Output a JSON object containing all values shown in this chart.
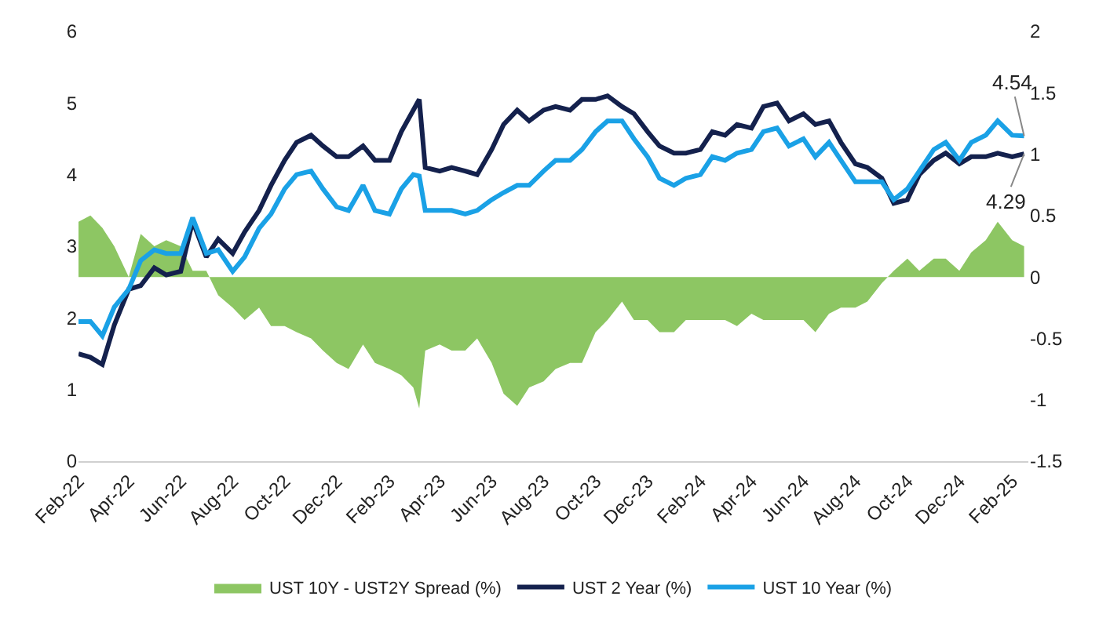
{
  "chart_data": {
    "type": "line",
    "x": [
      "2022-02-01",
      "2022-02-15",
      "2022-03-01",
      "2022-03-15",
      "2022-04-01",
      "2022-04-15",
      "2022-05-01",
      "2022-05-15",
      "2022-06-01",
      "2022-06-15",
      "2022-07-01",
      "2022-07-15",
      "2022-08-01",
      "2022-08-15",
      "2022-09-01",
      "2022-09-15",
      "2022-10-01",
      "2022-10-15",
      "2022-11-01",
      "2022-11-15",
      "2022-12-01",
      "2022-12-15",
      "2023-01-01",
      "2023-01-15",
      "2023-02-01",
      "2023-02-15",
      "2023-03-01",
      "2023-03-08",
      "2023-03-15",
      "2023-04-01",
      "2023-04-15",
      "2023-05-01",
      "2023-05-15",
      "2023-06-01",
      "2023-06-15",
      "2023-07-01",
      "2023-07-15",
      "2023-08-01",
      "2023-08-15",
      "2023-09-01",
      "2023-09-15",
      "2023-10-01",
      "2023-10-15",
      "2023-11-01",
      "2023-11-15",
      "2023-12-01",
      "2023-12-15",
      "2024-01-01",
      "2024-01-15",
      "2024-02-01",
      "2024-02-15",
      "2024-03-01",
      "2024-03-15",
      "2024-04-01",
      "2024-04-15",
      "2024-05-01",
      "2024-05-15",
      "2024-06-01",
      "2024-06-15",
      "2024-07-01",
      "2024-07-15",
      "2024-08-01",
      "2024-08-15",
      "2024-09-01",
      "2024-09-15",
      "2024-10-01",
      "2024-10-15",
      "2024-11-01",
      "2024-11-15",
      "2024-12-01",
      "2024-12-15",
      "2025-01-01",
      "2025-01-15",
      "2025-02-01",
      "2025-02-15"
    ],
    "series": [
      {
        "name": "UST 10Y - UST2Y Spread (%)",
        "type": "area",
        "axis": "y2",
        "color": "#8dc663",
        "values": [
          0.45,
          0.5,
          0.4,
          0.25,
          0.0,
          0.35,
          0.25,
          0.3,
          0.25,
          0.05,
          0.05,
          -0.15,
          -0.25,
          -0.35,
          -0.25,
          -0.4,
          -0.4,
          -0.45,
          -0.5,
          -0.6,
          -0.7,
          -0.75,
          -0.55,
          -0.7,
          -0.75,
          -0.8,
          -0.9,
          -1.07,
          -0.6,
          -0.55,
          -0.6,
          -0.6,
          -0.5,
          -0.7,
          -0.95,
          -1.05,
          -0.9,
          -0.85,
          -0.75,
          -0.7,
          -0.7,
          -0.45,
          -0.35,
          -0.2,
          -0.35,
          -0.35,
          -0.45,
          -0.45,
          -0.35,
          -0.35,
          -0.35,
          -0.35,
          -0.4,
          -0.3,
          -0.35,
          -0.35,
          -0.35,
          -0.35,
          -0.45,
          -0.3,
          -0.25,
          -0.25,
          -0.2,
          -0.05,
          0.05,
          0.15,
          0.05,
          0.15,
          0.15,
          0.05,
          0.2,
          0.3,
          0.45,
          0.3,
          0.25
        ]
      },
      {
        "name": "UST 2 Year (%)",
        "color": "#14214d",
        "values": [
          1.5,
          1.45,
          1.35,
          1.9,
          2.4,
          2.45,
          2.7,
          2.6,
          2.65,
          3.35,
          2.85,
          3.1,
          2.9,
          3.2,
          3.5,
          3.85,
          4.2,
          4.45,
          4.55,
          4.4,
          4.25,
          4.25,
          4.4,
          4.2,
          4.2,
          4.6,
          4.9,
          5.05,
          4.1,
          4.05,
          4.1,
          4.05,
          4.0,
          4.35,
          4.7,
          4.9,
          4.75,
          4.9,
          4.95,
          4.9,
          5.05,
          5.05,
          5.1,
          4.95,
          4.85,
          4.6,
          4.4,
          4.3,
          4.3,
          4.35,
          4.6,
          4.55,
          4.7,
          4.65,
          4.95,
          5.0,
          4.75,
          4.85,
          4.7,
          4.75,
          4.45,
          4.15,
          4.1,
          3.95,
          3.6,
          3.65,
          4.0,
          4.2,
          4.3,
          4.15,
          4.25,
          4.25,
          4.3,
          4.25,
          4.29
        ]
      },
      {
        "name": "UST 10 Year (%)",
        "color": "#1aa1e6",
        "values": [
          1.95,
          1.95,
          1.75,
          2.15,
          2.4,
          2.8,
          2.95,
          2.9,
          2.9,
          3.4,
          2.9,
          2.95,
          2.65,
          2.85,
          3.25,
          3.45,
          3.8,
          4.0,
          4.05,
          3.8,
          3.55,
          3.5,
          3.85,
          3.5,
          3.45,
          3.8,
          4.0,
          3.98,
          3.5,
          3.5,
          3.5,
          3.45,
          3.5,
          3.65,
          3.75,
          3.85,
          3.85,
          4.05,
          4.2,
          4.2,
          4.35,
          4.6,
          4.75,
          4.75,
          4.5,
          4.25,
          3.95,
          3.85,
          3.95,
          4.0,
          4.25,
          4.2,
          4.3,
          4.35,
          4.6,
          4.65,
          4.4,
          4.5,
          4.25,
          4.45,
          4.2,
          3.9,
          3.9,
          3.9,
          3.65,
          3.8,
          4.05,
          4.35,
          4.45,
          4.2,
          4.45,
          4.55,
          4.75,
          4.55,
          4.54
        ]
      }
    ],
    "annotations": [
      {
        "text": "4.54",
        "x": "2025-02-15",
        "y": 4.54
      },
      {
        "text": "4.29",
        "x": "2025-02-15",
        "y": 4.29
      }
    ],
    "xlim": [
      "2022-02-01",
      "2025-02-20"
    ],
    "xticks": [
      {
        "value": "2022-02-01",
        "label": "Feb-22"
      },
      {
        "value": "2022-04-01",
        "label": "Apr-22"
      },
      {
        "value": "2022-06-01",
        "label": "Jun-22"
      },
      {
        "value": "2022-08-01",
        "label": "Aug-22"
      },
      {
        "value": "2022-10-01",
        "label": "Oct-22"
      },
      {
        "value": "2022-12-01",
        "label": "Dec-22"
      },
      {
        "value": "2023-02-01",
        "label": "Feb-23"
      },
      {
        "value": "2023-04-01",
        "label": "Apr-23"
      },
      {
        "value": "2023-06-01",
        "label": "Jun-23"
      },
      {
        "value": "2023-08-01",
        "label": "Aug-23"
      },
      {
        "value": "2023-10-01",
        "label": "Oct-23"
      },
      {
        "value": "2023-12-01",
        "label": "Dec-23"
      },
      {
        "value": "2024-02-01",
        "label": "Feb-24"
      },
      {
        "value": "2024-04-01",
        "label": "Apr-24"
      },
      {
        "value": "2024-06-01",
        "label": "Jun-24"
      },
      {
        "value": "2024-08-01",
        "label": "Aug-24"
      },
      {
        "value": "2024-10-01",
        "label": "Oct-24"
      },
      {
        "value": "2024-12-01",
        "label": "Dec-24"
      },
      {
        "value": "2025-02-01",
        "label": "Feb-25"
      }
    ],
    "ylim": [
      0,
      6
    ],
    "yticks": [
      0,
      1,
      2,
      3,
      4,
      5,
      6
    ],
    "y2lim": [
      -1.5,
      2
    ],
    "y2ticks": [
      -1.5,
      -1,
      -0.5,
      0,
      0.5,
      1,
      1.5,
      2
    ],
    "legend": "bottom"
  }
}
